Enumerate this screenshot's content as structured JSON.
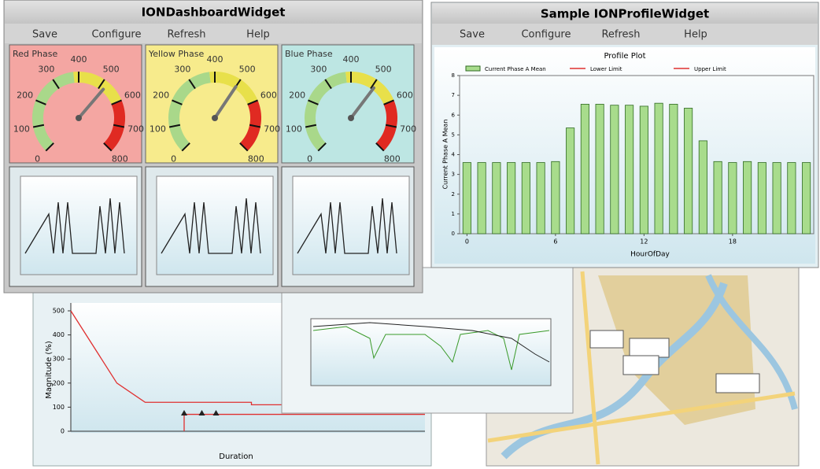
{
  "dashboard": {
    "title": "IONDashboardWidget",
    "menu": [
      "Save",
      "Configure",
      "Refresh",
      "Help"
    ],
    "gauges": [
      {
        "label": "Red Phase",
        "background": "#f4a6a2",
        "value": 520
      },
      {
        "label": "Yellow Phase",
        "background": "#f7eb8c",
        "value": 500
      },
      {
        "label": "Blue Phase",
        "background": "#bde6e3",
        "value": 510
      }
    ],
    "gauge_scale": {
      "lim": [
        0,
        800
      ],
      "ticks": [
        0,
        100,
        200,
        300,
        400,
        500,
        600,
        700,
        800
      ],
      "bands": [
        {
          "from": 0,
          "to": 380,
          "color": "#a9d88a"
        },
        {
          "from": 380,
          "to": 600,
          "color": "#e8e04a"
        },
        {
          "from": 600,
          "to": 800,
          "color": "#e02a22"
        }
      ]
    }
  },
  "profile": {
    "title": "Sample IONProfileWidget",
    "menu": [
      "Save",
      "Configure",
      "Refresh",
      "Help"
    ],
    "chart_data": {
      "type": "bar",
      "title": "Profile Plot",
      "x_label": "HourOfDay",
      "y_label": "Current Phase A Mean",
      "x": [
        0,
        1,
        2,
        3,
        4,
        5,
        6,
        7,
        8,
        9,
        10,
        11,
        12,
        13,
        14,
        15,
        16,
        17,
        18,
        19,
        20,
        21,
        22,
        23
      ],
      "series": [
        {
          "name": "Current Phase A Mean",
          "color": "#a8dc8c",
          "values": [
            3.6,
            3.6,
            3.6,
            3.6,
            3.6,
            3.6,
            3.65,
            5.35,
            6.55,
            6.55,
            6.5,
            6.5,
            6.45,
            6.6,
            6.55,
            6.35,
            4.7,
            3.65,
            3.6,
            3.65,
            3.6,
            3.6,
            3.6,
            3.6
          ]
        }
      ],
      "limits": [
        {
          "name": "Lower Limit",
          "color": "#e03030"
        },
        {
          "name": "Upper Limit",
          "color": "#e03030"
        }
      ],
      "xlim": [
        -0.5,
        23.5
      ],
      "xticks": [
        0,
        6,
        12,
        18
      ],
      "ylim": [
        0,
        8
      ],
      "yticks": [
        0,
        1,
        2,
        3,
        4,
        5,
        6,
        7,
        8
      ]
    }
  },
  "tolerance": {
    "chart_data": {
      "type": "line",
      "x_label": "Duration",
      "y_label": "Magnitude (%)",
      "xlim": [
        0,
        10
      ],
      "ylim": [
        0,
        500
      ],
      "yticks": [
        0,
        100,
        200,
        300,
        400,
        500
      ],
      "series": [
        {
          "color": "#e03030",
          "x": [
            0,
            1.3,
            2.1,
            5.1,
            5.1,
            6.0,
            10
          ],
          "values": [
            500,
            200,
            120,
            120,
            110,
            110,
            110
          ]
        },
        {
          "color": "#e03030",
          "x": [
            3.2,
            3.2,
            10
          ],
          "values": [
            0,
            70,
            70
          ]
        }
      ],
      "events": {
        "color": "#222222",
        "x": [
          3.2,
          3.7,
          4.1
        ],
        "values": [
          75,
          75,
          75
        ]
      }
    }
  }
}
